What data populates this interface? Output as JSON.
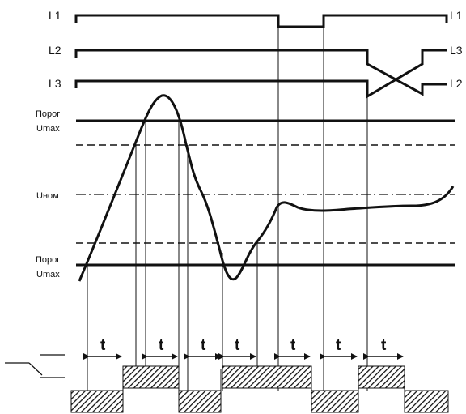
{
  "phases_left": [
    "L1",
    "L2",
    "L3"
  ],
  "phases_right": [
    "L1",
    "L3",
    "L2"
  ],
  "threshold_upper": [
    "Порог",
    "Umax"
  ],
  "threshold_lower": [
    "Порог",
    "Umax"
  ],
  "nominal_label": "Uном",
  "delay_label": "t",
  "colors": {
    "line": "#111111",
    "background": "#ffffff"
  }
}
